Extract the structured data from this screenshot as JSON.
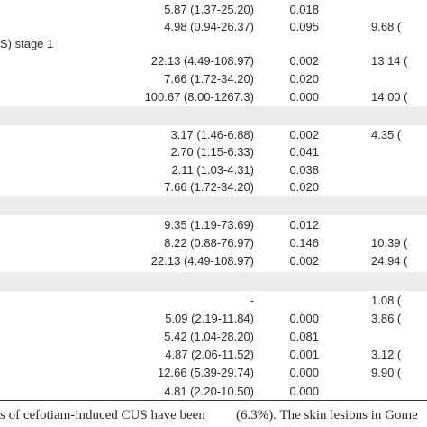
{
  "table": {
    "rows": [
      {
        "label": "",
        "or1": "5.87 (1.37-25.20)",
        "p1": "0.018",
        "or2": "",
        "shaded": false
      },
      {
        "label": "",
        "or1": "4.98 (0.94-26.37)",
        "p1": "0.095",
        "or2": "9.68 (",
        "shaded": false
      },
      {
        "label": "S) stage 1",
        "or1": "",
        "p1": "",
        "or2": "",
        "shaded": false
      },
      {
        "label": "",
        "or1": "22.13 (4.49-108.97)",
        "p1": "0.002",
        "or2": "13.14 (",
        "shaded": false
      },
      {
        "label": "",
        "or1": "7.66 (1.72-34.20)",
        "p1": "0.020",
        "or2": "",
        "shaded": false
      },
      {
        "label": "",
        "or1": "100.67 (8.00-1267.3)",
        "p1": "0.000",
        "or2": "14.00 (",
        "shaded": false
      },
      {
        "label": "",
        "or1": "",
        "p1": "",
        "or2": "",
        "shaded": true
      },
      {
        "label": "",
        "or1": "3.17 (1.46-6.88)",
        "p1": "0.002",
        "or2": "4.35 (",
        "shaded": false
      },
      {
        "label": "",
        "or1": "2.70 (1.15-6.33)",
        "p1": "0.041",
        "or2": "",
        "shaded": false
      },
      {
        "label": "",
        "or1": "2.11 (1.03-4.31)",
        "p1": "0.038",
        "or2": "",
        "shaded": false
      },
      {
        "label": "",
        "or1": "7.66 (1.72-34.20)",
        "p1": "0.020",
        "or2": "",
        "shaded": false
      },
      {
        "label": "",
        "or1": "",
        "p1": "",
        "or2": "",
        "shaded": true
      },
      {
        "label": "",
        "or1": "9.35 (1.19-73.69)",
        "p1": "0.012",
        "or2": "",
        "shaded": false
      },
      {
        "label": "",
        "or1": "8.22 (0.88-76.97)",
        "p1": "0.146",
        "or2": "10.39 (",
        "shaded": false
      },
      {
        "label": "",
        "or1": "22.13 (4.49-108.97)",
        "p1": "0.002",
        "or2": "24.94 (",
        "shaded": false
      },
      {
        "label": "",
        "or1": "",
        "p1": "",
        "or2": "",
        "shaded": true
      },
      {
        "label": "",
        "or1": "-",
        "p1": "",
        "or2": "1.08 (",
        "shaded": false
      },
      {
        "label": "",
        "or1": "5.09 (2.19-11.84)",
        "p1": "0.000",
        "or2": "3.86 (",
        "shaded": false
      },
      {
        "label": "",
        "or1": "5.42 (1.04-28.20)",
        "p1": "0.081",
        "or2": "",
        "shaded": false
      },
      {
        "label": "",
        "or1": "4.87 (2.06-11.52)",
        "p1": "0.001",
        "or2": "3.12 (",
        "shaded": false
      },
      {
        "label": "",
        "or1": "12.66 (5.39-29.74)",
        "p1": "0.000",
        "or2": "9.90 (",
        "shaded": false
      },
      {
        "label": "",
        "or1": "4.81 (2.20-10.50)",
        "p1": "0.000",
        "or2": "",
        "shaded": false
      }
    ]
  },
  "caption": {
    "left": "s of cefotiam-induced CUS have been",
    "right": "(6.3%). The skin lesions in Gome"
  }
}
